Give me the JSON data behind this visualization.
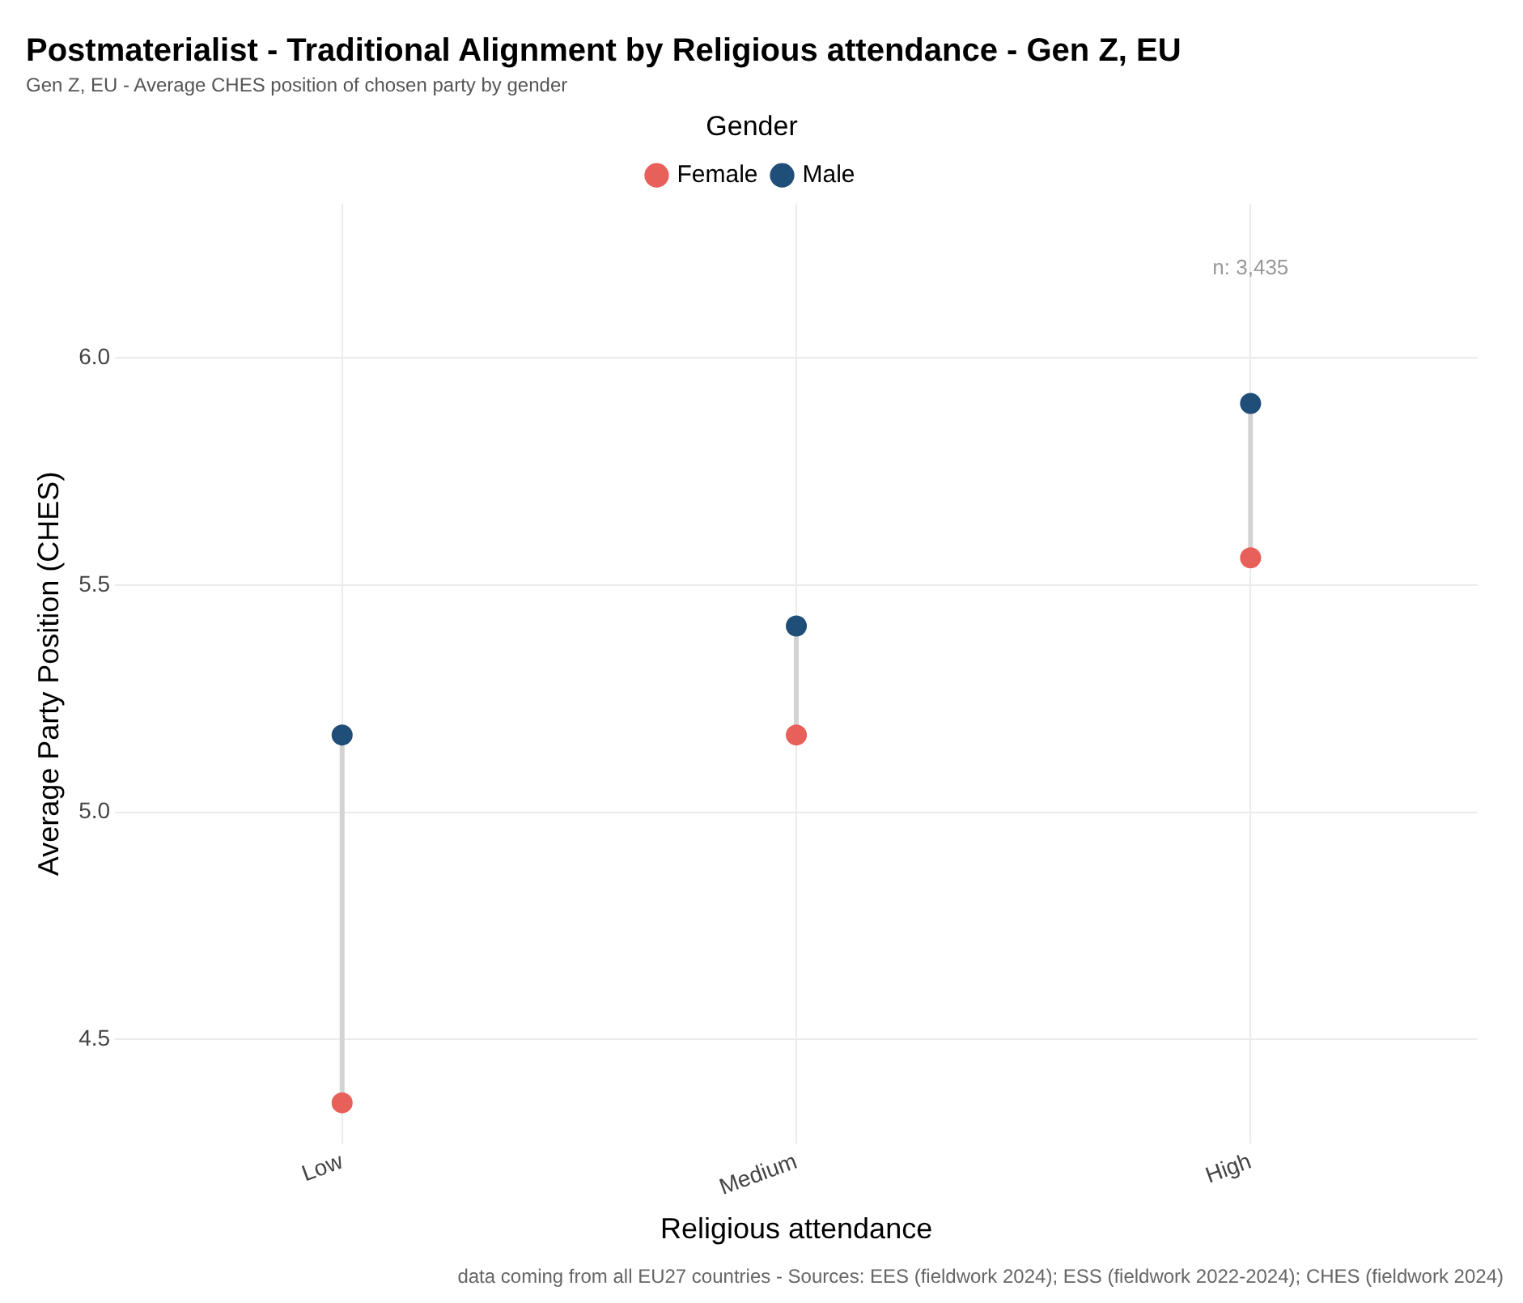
{
  "chart_data": {
    "type": "scatter",
    "title": "Postmaterialist - Traditional Alignment by Religious attendance - Gen Z, EU",
    "subtitle": "Gen Z, EU - Average CHES position of chosen party by gender",
    "xlabel": "Religious attendance",
    "ylabel": "Average Party Position (CHES)",
    "legend_title": "Gender",
    "categories": [
      "Low",
      "Medium",
      "High"
    ],
    "series": [
      {
        "name": "Female",
        "color": "#e8605a",
        "values": [
          4.36,
          5.17,
          5.56
        ]
      },
      {
        "name": "Male",
        "color": "#1f4e79",
        "values": [
          5.17,
          5.41,
          5.9
        ]
      }
    ],
    "ylim": [
      4.27,
      6.34
    ],
    "yticks": [
      {
        "value": 4.5,
        "label": "4.5"
      },
      {
        "value": 5,
        "label": "5.0"
      },
      {
        "value": 5.5,
        "label": "5.5"
      },
      {
        "value": 6,
        "label": "6.0"
      }
    ],
    "annotations": [
      "n: 3,435",
      "data coming from all EU27 countries - Sources: EES (fieldwork 2024); ESS (fieldwork 2022-2024); CHES (fieldwork 2024)"
    ],
    "grid": true,
    "legend": "top",
    "marker": "circle"
  }
}
